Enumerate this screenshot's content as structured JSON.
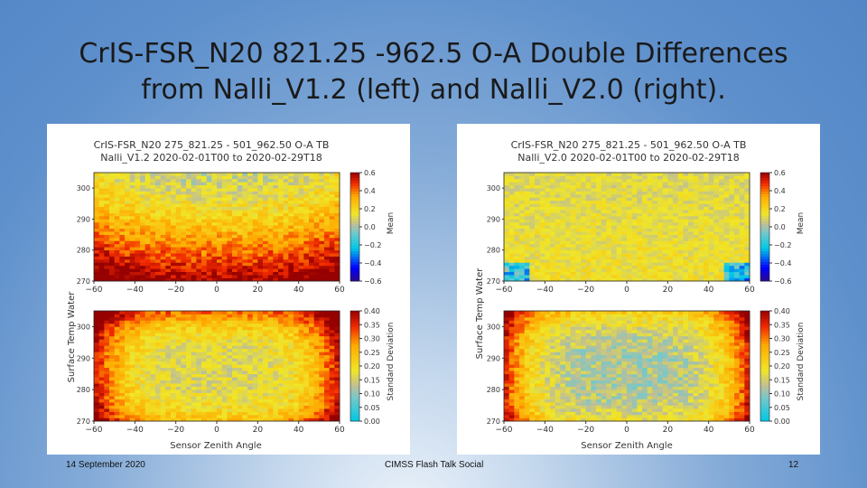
{
  "slide": {
    "title_line1": "CrIS-FSR_N20 821.25 -962.5 O-A Double Differences",
    "title_line2": "from Nalli_V1.2 (left) and Nalli_V2.0 (right)."
  },
  "footer": {
    "date": "14 September 2020",
    "event": "CIMSS Flash Talk Social",
    "page_number": "12"
  },
  "colors": {
    "background": "#5e90cc",
    "text": "#1a1a1a"
  },
  "chart_data": [
    {
      "type": "heatmap",
      "panel": "left",
      "title_line1": "CrIS-FSR_N20 275_821.25 - 501_962.50 O-A TB",
      "title_line2": "Nalli_V1.2 2020-02-01T00 to 2020-02-29T18",
      "xlabel": "Sensor Zenith Angle",
      "ylabel": "Surface Temp Water",
      "xlim": [
        -60,
        60
      ],
      "x_ticks": [
        "−60",
        "−40",
        "−20",
        "0",
        "20",
        "40",
        "60"
      ],
      "y_ticks": [
        "270",
        "280",
        "290",
        "300"
      ],
      "ylim": [
        270,
        305
      ],
      "subplots": [
        {
          "name": "mean",
          "colorbar_label": "Mean",
          "colorbar_ticks": [
            "0.6",
            "0.4",
            "0.2",
            "0.0",
            "−0.2",
            "−0.4",
            "−0.6"
          ],
          "vmin": -0.6,
          "vmax": 0.6,
          "pattern": "near 0 at top (300 K), rising to ~0.4–0.6 toward 270 K; slightly higher at edges"
        },
        {
          "name": "std",
          "colorbar_label": "Standard Deviation",
          "colorbar_ticks": [
            "0.40",
            "0.35",
            "0.30",
            "0.25",
            "0.20",
            "0.15",
            "0.10",
            "0.05",
            "0.00"
          ],
          "vmin": 0.0,
          "vmax": 0.4,
          "pattern": "~0.15–0.20 in the centre, rising to ~0.35–0.40 at scan edges and at top/bottom rows"
        }
      ]
    },
    {
      "type": "heatmap",
      "panel": "right",
      "title_line1": "CrIS-FSR_N20 275_821.25 - 501_962.50 O-A TB",
      "title_line2": "Nalli_V2.0 2020-02-01T00 to 2020-02-29T18",
      "xlabel": "Sensor Zenith Angle",
      "ylabel": "Surface Temp Water",
      "xlim": [
        -60,
        60
      ],
      "x_ticks": [
        "−60",
        "−40",
        "−20",
        "0",
        "20",
        "40",
        "60"
      ],
      "y_ticks": [
        "270",
        "280",
        "290",
        "300"
      ],
      "ylim": [
        270,
        305
      ],
      "subplots": [
        {
          "name": "mean",
          "colorbar_label": "Mean",
          "colorbar_ticks": [
            "0.6",
            "0.4",
            "0.2",
            "0.0",
            "−0.2",
            "−0.4",
            "−0.6"
          ],
          "vmin": -0.6,
          "vmax": 0.6,
          "pattern": "near 0.05–0.2 nearly everywhere; slight negative values at the bottom corners"
        },
        {
          "name": "std",
          "colorbar_label": "Standard Deviation",
          "colorbar_ticks": [
            "0.40",
            "0.35",
            "0.30",
            "0.25",
            "0.20",
            "0.15",
            "0.10",
            "0.05",
            "0.00"
          ],
          "vmin": 0.0,
          "vmax": 0.4,
          "pattern": "~0.10–0.20 across most of the domain, rising to ~0.35–0.40 only at extreme edges/corners"
        }
      ]
    }
  ]
}
